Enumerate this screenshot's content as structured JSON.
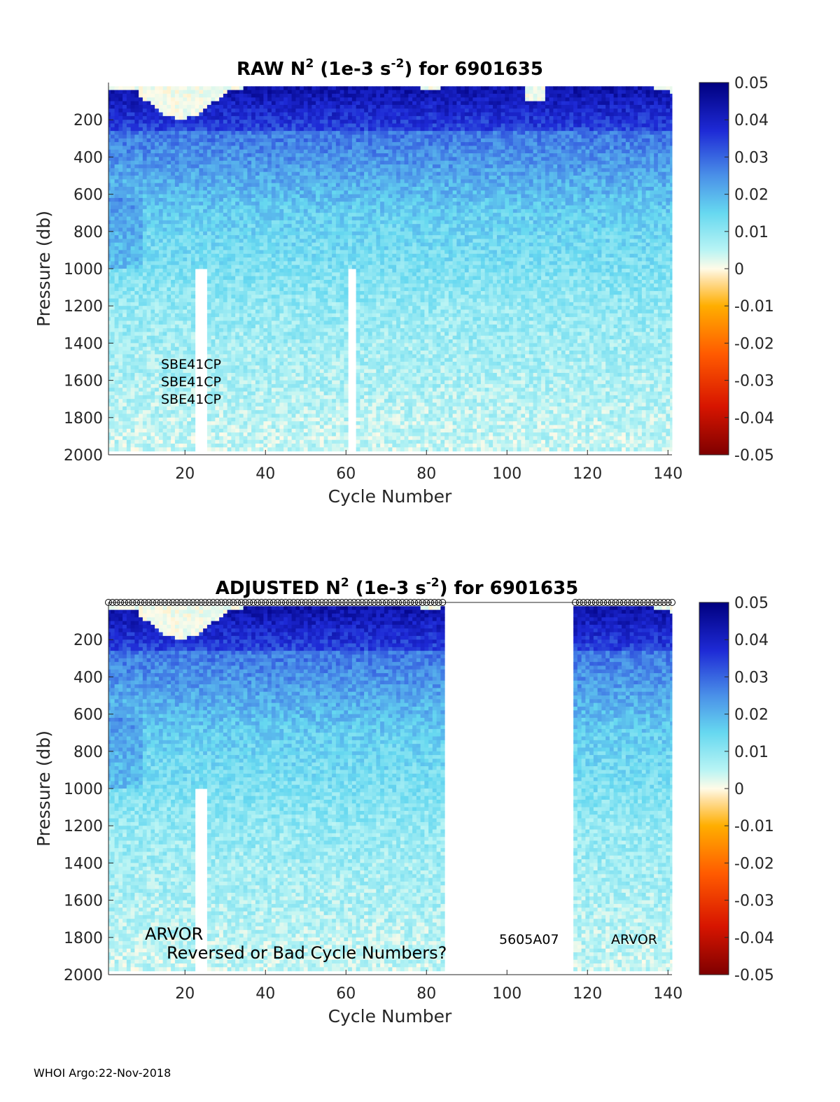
{
  "figure": {
    "footer": "WHOI Argo:22-Nov-2018"
  },
  "chart_data": [
    {
      "type": "heatmap",
      "title_main": "RAW N",
      "title_sup1": "2",
      "title_mid": " (1e-3 s",
      "title_sup2": "-2",
      "title_end": ") for 6901635",
      "xlabel": "Cycle Number",
      "ylabel": "Pressure (db)",
      "xlim": [
        1,
        141
      ],
      "ylim": [
        0,
        2000
      ],
      "y_reversed": true,
      "xticks": [
        "20",
        "40",
        "60",
        "80",
        "100",
        "120",
        "140"
      ],
      "yticks": [
        "200",
        "400",
        "600",
        "800",
        "1000",
        "1200",
        "1400",
        "1600",
        "1800",
        "2000"
      ],
      "colorbar": {
        "range": [
          -0.05,
          0.05
        ],
        "ticks": [
          "0.05",
          "0.04",
          "0.03",
          "0.02",
          "0.01",
          "0",
          "-0.01",
          "-0.02",
          "-0.03",
          "-0.04",
          "-0.05"
        ]
      },
      "data_cycles": [
        [
          1,
          141
        ]
      ],
      "missing_strip_cycles": [
        [
          23,
          25
        ],
        [
          61,
          62
        ]
      ],
      "annotations": [
        "SBE41CP",
        "SBE41CP",
        "SBE41CP"
      ],
      "markers": false
    },
    {
      "type": "heatmap",
      "title_main": "ADJUSTED N",
      "title_sup1": "2",
      "title_mid": " (1e-3 s",
      "title_sup2": "-2",
      "title_end": ") for 6901635",
      "xlabel": "Cycle Number",
      "ylabel": "Pressure (db)",
      "xlim": [
        1,
        141
      ],
      "ylim": [
        0,
        2000
      ],
      "y_reversed": true,
      "xticks": [
        "20",
        "40",
        "60",
        "80",
        "100",
        "120",
        "140"
      ],
      "yticks": [
        "200",
        "400",
        "600",
        "800",
        "1000",
        "1200",
        "1400",
        "1600",
        "1800",
        "2000"
      ],
      "colorbar": {
        "range": [
          -0.05,
          0.05
        ],
        "ticks": [
          "0.05",
          "0.04",
          "0.03",
          "0.02",
          "0.01",
          "0",
          "-0.01",
          "-0.02",
          "-0.03",
          "-0.04",
          "-0.05"
        ]
      },
      "data_cycles": [
        [
          1,
          84
        ],
        [
          117,
          141
        ]
      ],
      "missing_strip_cycles": [
        [
          23,
          25
        ]
      ],
      "annotations": [
        "ARVOR",
        "Reversed or Bad Cycle Numbers?",
        "5605A07",
        "ARVOR"
      ],
      "markers": true
    }
  ]
}
